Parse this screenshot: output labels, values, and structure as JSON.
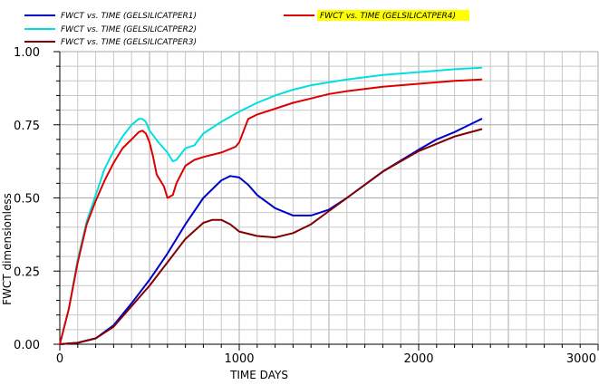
{
  "chart_data": {
    "type": "line",
    "title": "",
    "xlabel": "TIME   DAYS",
    "ylabel": "FWCT  dimensionless",
    "xlim": [
      0,
      3000
    ],
    "ylim": [
      0,
      1
    ],
    "xticks": [
      "0",
      "1000",
      "2000",
      "3000"
    ],
    "yticks": [
      "0.00",
      "0.25",
      "0.50",
      "0.75",
      "1.00"
    ],
    "xtick_values": [
      0,
      1000,
      2000,
      3000
    ],
    "ytick_values": [
      0,
      0.25,
      0.5,
      0.75,
      1.0
    ],
    "grid": true,
    "legend_position": "top",
    "series": [
      {
        "name": "FWCT vs. TIME (GELSILICATPER1)",
        "color": "#0000cc",
        "highlight": false,
        "x": [
          0,
          100,
          200,
          300,
          400,
          500,
          600,
          700,
          800,
          900,
          950,
          1000,
          1050,
          1100,
          1200,
          1300,
          1400,
          1450,
          1500,
          1600,
          1800,
          2000,
          2100,
          2200,
          2300,
          2350
        ],
        "y": [
          0.0,
          0.005,
          0.02,
          0.065,
          0.14,
          0.22,
          0.31,
          0.41,
          0.5,
          0.56,
          0.575,
          0.57,
          0.545,
          0.51,
          0.465,
          0.44,
          0.44,
          0.45,
          0.46,
          0.5,
          0.59,
          0.665,
          0.7,
          0.725,
          0.755,
          0.77
        ]
      },
      {
        "name": "FWCT vs. TIME (GELSILICATPER2)",
        "color": "#00e0e0",
        "highlight": false,
        "x": [
          0,
          50,
          100,
          150,
          200,
          250,
          300,
          350,
          400,
          440,
          460,
          480,
          500,
          550,
          600,
          630,
          650,
          700,
          750,
          800,
          900,
          1000,
          1100,
          1200,
          1300,
          1400,
          1500,
          1600,
          1800,
          2000,
          2200,
          2350
        ],
        "y": [
          0.0,
          0.12,
          0.29,
          0.42,
          0.51,
          0.6,
          0.66,
          0.71,
          0.75,
          0.77,
          0.77,
          0.76,
          0.73,
          0.69,
          0.655,
          0.625,
          0.63,
          0.67,
          0.68,
          0.72,
          0.76,
          0.795,
          0.825,
          0.85,
          0.87,
          0.885,
          0.895,
          0.905,
          0.92,
          0.93,
          0.94,
          0.945
        ]
      },
      {
        "name": "FWCT vs. TIME (GELSILICATPER3)",
        "color": "#800000",
        "highlight": false,
        "x": [
          0,
          100,
          200,
          300,
          400,
          500,
          600,
          700,
          800,
          850,
          900,
          950,
          1000,
          1100,
          1200,
          1300,
          1400,
          1500,
          1600,
          1800,
          2000,
          2200,
          2350
        ],
        "y": [
          0.0,
          0.005,
          0.02,
          0.06,
          0.13,
          0.2,
          0.28,
          0.36,
          0.415,
          0.425,
          0.425,
          0.41,
          0.385,
          0.37,
          0.365,
          0.38,
          0.41,
          0.455,
          0.5,
          0.59,
          0.66,
          0.71,
          0.735
        ]
      },
      {
        "name": "FWCT vs. TIME (GELSILICATPER4)",
        "color": "#dd0000",
        "highlight": true,
        "x": [
          0,
          50,
          100,
          150,
          200,
          250,
          300,
          350,
          400,
          440,
          460,
          480,
          500,
          520,
          540,
          580,
          600,
          630,
          650,
          700,
          750,
          800,
          900,
          980,
          1000,
          1050,
          1100,
          1200,
          1300,
          1400,
          1500,
          1600,
          1800,
          2000,
          2200,
          2350
        ],
        "y": [
          0.0,
          0.12,
          0.28,
          0.41,
          0.49,
          0.56,
          0.62,
          0.67,
          0.7,
          0.725,
          0.73,
          0.72,
          0.69,
          0.64,
          0.58,
          0.54,
          0.5,
          0.51,
          0.55,
          0.61,
          0.63,
          0.64,
          0.655,
          0.675,
          0.69,
          0.77,
          0.785,
          0.805,
          0.825,
          0.84,
          0.855,
          0.865,
          0.88,
          0.89,
          0.9,
          0.905
        ]
      }
    ]
  }
}
